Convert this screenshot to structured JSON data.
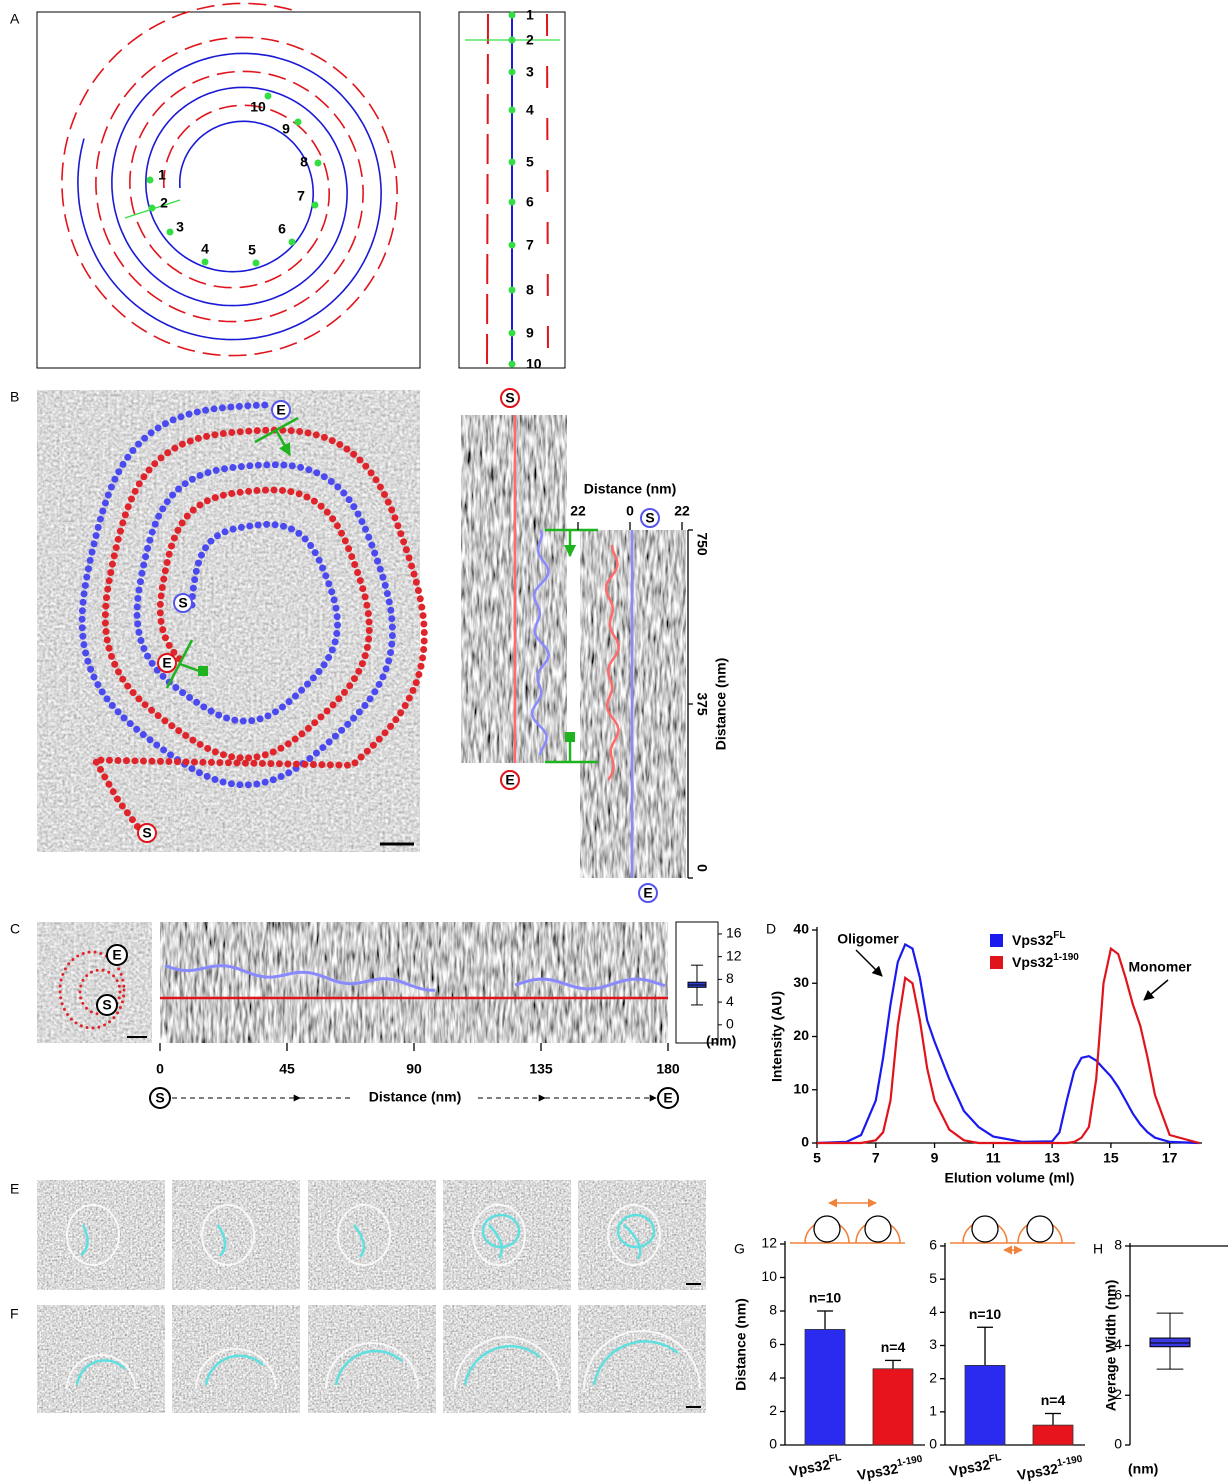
{
  "panel_letters": [
    "A",
    "B",
    "C",
    "D",
    "E",
    "F",
    "G",
    "H"
  ],
  "panel_a": {
    "spiral_labels": [
      1,
      2,
      3,
      4,
      5,
      6,
      7,
      8,
      9,
      10
    ],
    "strip_labels": [
      1,
      2,
      3,
      4,
      5,
      6,
      7,
      8,
      9,
      10
    ]
  },
  "panel_b": {
    "image_markers": [
      "S",
      "E",
      "S",
      "E"
    ],
    "kymo_markers": [
      "S",
      "E",
      "S",
      "E"
    ]
  },
  "panel_c": {
    "image_markers": [
      "E",
      "S"
    ],
    "axis_markers": [
      "S",
      "E"
    ]
  },
  "chart_data": [
    {
      "type": "kymograph",
      "xlabel": "Distance (nm)",
      "xlim": [
        -22,
        22
      ],
      "xticks": [
        {
          "value": -22,
          "label": "22"
        },
        0,
        22
      ],
      "ylabel": "Distance (nm)",
      "ylim": [
        0,
        750
      ],
      "yticks": [
        0,
        375,
        750
      ]
    },
    {
      "type": "kymograph",
      "xlabel": "Distance (nm)",
      "xlim": [
        0,
        180
      ],
      "xticks": [
        0,
        45,
        90,
        135,
        180
      ]
    },
    {
      "type": "box",
      "unit_label": "(nm)",
      "ylim": [
        -3.2,
        18.1
      ],
      "yticks": [
        0,
        4,
        8,
        12,
        16
      ],
      "color": "#2f3fd6",
      "whisker_low": 3.5,
      "q1": 6.6,
      "median": 7,
      "q3": 7.5,
      "whisker_high": 10.5
    },
    {
      "type": "line",
      "xlabel": "Elution volume (ml)",
      "ylabel": "Intensity (AU)",
      "xlim": [
        5,
        18.1
      ],
      "xticks": [
        5,
        7,
        9,
        11,
        13,
        15,
        17
      ],
      "ylim": [
        0,
        40
      ],
      "yticks": [
        0,
        10,
        20,
        30,
        40
      ],
      "annotations": [
        "Oligomer",
        "Monomer"
      ],
      "x": [
        5,
        6,
        6.5,
        7,
        7.25,
        7.5,
        7.75,
        8,
        8.25,
        8.5,
        8.75,
        9,
        9.5,
        10,
        10.5,
        11,
        12,
        13,
        13.25,
        13.5,
        13.75,
        14,
        14.25,
        14.5,
        14.75,
        15,
        15.25,
        15.5,
        15.75,
        16,
        16.25,
        16.5,
        17,
        18
      ],
      "series": [
        {
          "name": "Vps32",
          "superscript": "FL",
          "color": "#1a1aef",
          "values": [
            0,
            0.2,
            1.5,
            8,
            16,
            26,
            34,
            37.3,
            36.5,
            31,
            23,
            19,
            12,
            6,
            3,
            1.2,
            0.2,
            0.3,
            2,
            8,
            13.5,
            16,
            16.3,
            15.5,
            14,
            12.5,
            10.5,
            8,
            5.5,
            3.5,
            2,
            1,
            0.2,
            0
          ]
        },
        {
          "name": "Vps32",
          "superscript": "1-190",
          "color": "#e0141b",
          "values": [
            0,
            0,
            0,
            0.5,
            2,
            8,
            22,
            31,
            30,
            23,
            14,
            8,
            2.5,
            0.5,
            0,
            0,
            0,
            0,
            0,
            0,
            0.2,
            1,
            3,
            12,
            30,
            36.5,
            35.5,
            31,
            26,
            22,
            16,
            9,
            1.5,
            0
          ]
        }
      ]
    },
    {
      "type": "bar",
      "ylabel": "Distance (nm)",
      "categories": [
        "Vps32",
        "Vps32"
      ],
      "category_superscripts": [
        "FL",
        "1-190"
      ],
      "values": [
        6.9,
        4.55
      ],
      "errors": [
        1.1,
        0.5
      ],
      "annotations": [
        "n=10",
        "n=4"
      ],
      "colors": [
        "#2b2bf0",
        "#e8141b"
      ],
      "ylim": [
        0,
        12
      ],
      "yticks": [
        0,
        2,
        4,
        6,
        8,
        10,
        12
      ]
    },
    {
      "type": "bar",
      "categories": [
        "Vps32",
        "Vps32"
      ],
      "category_superscripts": [
        "FL",
        "1-190"
      ],
      "values": [
        2.4,
        0.6
      ],
      "errors": [
        1.15,
        0.35
      ],
      "annotations": [
        "n=10",
        "n=4"
      ],
      "colors": [
        "#2b2bf0",
        "#e8141b"
      ],
      "ylim": [
        0,
        6
      ],
      "yticks": [
        0,
        1,
        2,
        3,
        4,
        5,
        6
      ]
    },
    {
      "type": "box",
      "ylabel": "Average Width (nm)",
      "unit_label": "(nm)",
      "ylim": [
        0,
        8
      ],
      "yticks": [
        0,
        2,
        4,
        6,
        8
      ],
      "color": "#3a3ae0",
      "whisker_low": 3.05,
      "q1": 3.95,
      "median": 4.1,
      "q3": 4.3,
      "whisker_high": 5.3
    }
  ]
}
